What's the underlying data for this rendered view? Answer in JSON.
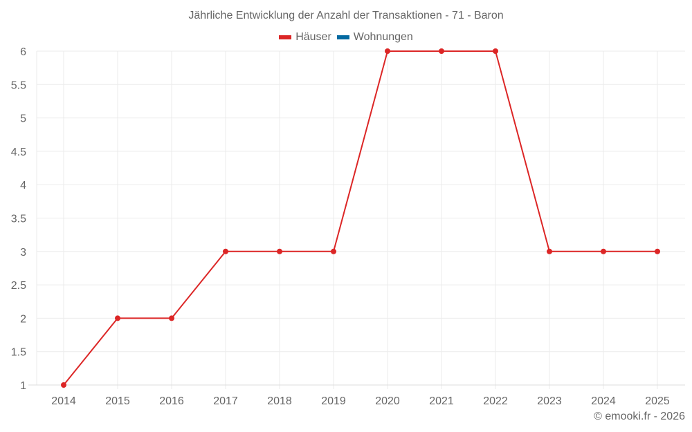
{
  "chart_data": {
    "type": "line",
    "title": "Jährliche Entwicklung der Anzahl der Transaktionen - 71 - Baron",
    "xlabel": "",
    "ylabel": "",
    "categories": [
      "2014",
      "2015",
      "2016",
      "2017",
      "2018",
      "2019",
      "2020",
      "2021",
      "2022",
      "2023",
      "2024",
      "2025"
    ],
    "series": [
      {
        "name": "Häuser",
        "color": "#dc2626",
        "values": [
          1,
          2,
          2,
          3,
          3,
          3,
          6,
          6,
          6,
          3,
          3,
          3
        ]
      },
      {
        "name": "Wohnungen",
        "color": "#0369a1",
        "values": []
      }
    ],
    "ylim": [
      1,
      6
    ],
    "yticks": [
      "1",
      "1.5",
      "2",
      "2.5",
      "3",
      "3.5",
      "4",
      "4.5",
      "5",
      "5.5",
      "6"
    ],
    "grid": true,
    "legend_position": "top"
  },
  "credit": "© emooki.fr - 2026"
}
